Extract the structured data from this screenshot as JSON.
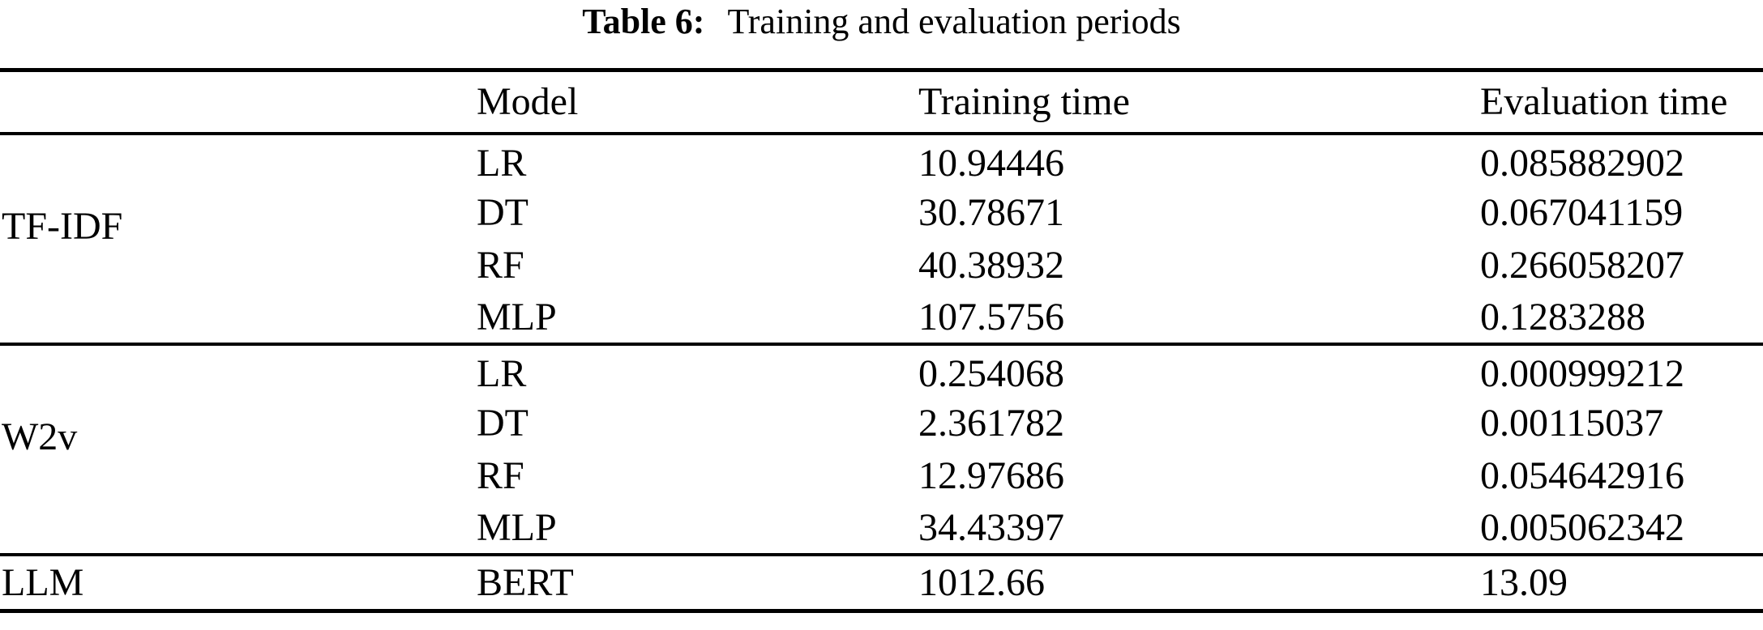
{
  "caption": {
    "label": "Table 6:",
    "text": "Training and evaluation periods"
  },
  "table": {
    "headers": {
      "group": "",
      "model": "Model",
      "training_time": "Training time",
      "evaluation_time": "Evaluation time"
    },
    "groups": [
      {
        "name": "TF-IDF",
        "rows": [
          {
            "model": "LR",
            "training_time": "10.94446",
            "evaluation_time": "0.085882902"
          },
          {
            "model": "DT",
            "training_time": "30.78671",
            "evaluation_time": "0.067041159"
          },
          {
            "model": "RF",
            "training_time": "40.38932",
            "evaluation_time": "0.266058207"
          },
          {
            "model": "MLP",
            "training_time": "107.5756",
            "evaluation_time": "0.1283288"
          }
        ]
      },
      {
        "name": "W2v",
        "rows": [
          {
            "model": "LR",
            "training_time": "0.254068",
            "evaluation_time": "0.000999212"
          },
          {
            "model": "DT",
            "training_time": "2.361782",
            "evaluation_time": "0.00115037"
          },
          {
            "model": "RF",
            "training_time": "12.97686",
            "evaluation_time": "0.054642916"
          },
          {
            "model": "MLP",
            "training_time": "34.43397",
            "evaluation_time": "0.005062342"
          }
        ]
      },
      {
        "name": "LLM",
        "rows": [
          {
            "model": "BERT",
            "training_time": "1012.66",
            "evaluation_time": "13.09"
          }
        ]
      }
    ]
  },
  "colors": {
    "text": "#000000",
    "background": "#ffffff",
    "rule": "#000000"
  }
}
